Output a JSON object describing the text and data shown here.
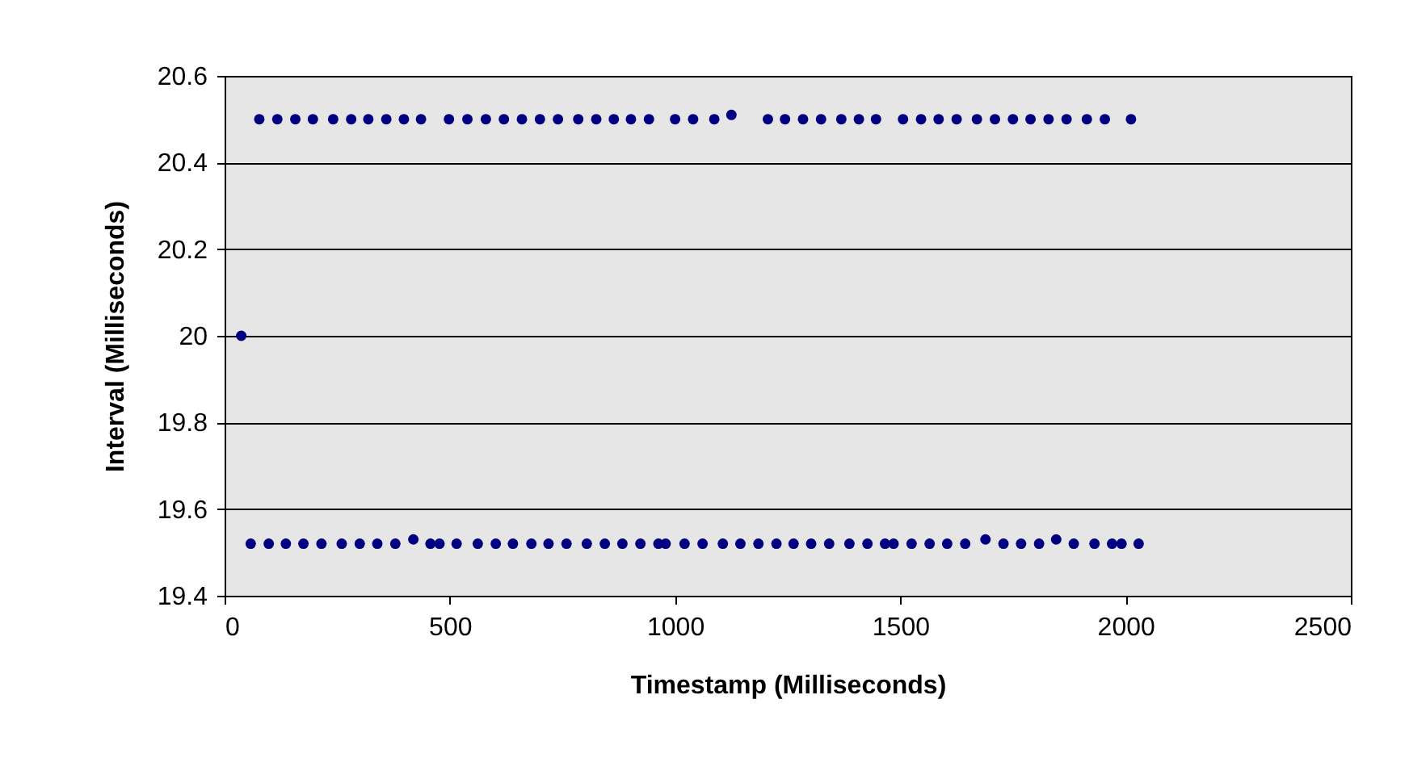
{
  "chart_data": {
    "type": "scatter",
    "xlabel": "Timestamp (Milliseconds)",
    "ylabel": "Interval (Milliseconds)",
    "xlim": [
      0,
      2500
    ],
    "xticks": [
      0,
      500,
      1000,
      1500,
      2000,
      2500
    ],
    "ylim": [
      19.4,
      20.6
    ],
    "yticks": [
      19.4,
      19.6,
      19.8,
      20,
      20.2,
      20.4,
      20.6
    ],
    "grid": "y",
    "marker": "circle",
    "series": [
      {
        "color": "#000080",
        "x": [
          37,
          77,
          117,
          157,
          196,
          241,
          281,
          319,
          359,
          398,
          436,
          498,
          539,
          580,
          620,
          660,
          700,
          740,
          785,
          825,
          864,
          902,
          942,
          1000,
          1040,
          1087,
          1125,
          1206,
          1244,
          1284,
          1324,
          1369,
          1408,
          1446,
          1506,
          1546,
          1585,
          1625,
          1670,
          1710,
          1750,
          1789,
          1829,
          1869,
          1914,
          1954,
          2012,
          58,
          98,
          136,
          175,
          215,
          260,
          300,
          339,
          379,
          419,
          457,
          477,
          515,
          562,
          602,
          640,
          681,
          719,
          759,
          804,
          844,
          883,
          923,
          963,
          979,
          1021,
          1061,
          1106,
          1145,
          1185,
          1225,
          1263,
          1302,
          1342,
          1387,
          1427,
          1466,
          1485,
          1525,
          1565,
          1604,
          1644,
          1689,
          1729,
          1768,
          1808,
          1846,
          1885,
          1931,
          1970,
          1991,
          2029
        ],
        "values": [
          20,
          20.5,
          20.5,
          20.5,
          20.5,
          20.5,
          20.5,
          20.5,
          20.5,
          20.5,
          20.5,
          20.5,
          20.5,
          20.5,
          20.5,
          20.5,
          20.5,
          20.5,
          20.5,
          20.5,
          20.5,
          20.5,
          20.5,
          20.5,
          20.5,
          20.5,
          20.51,
          20.5,
          20.5,
          20.5,
          20.5,
          20.5,
          20.5,
          20.5,
          20.5,
          20.5,
          20.5,
          20.5,
          20.5,
          20.5,
          20.5,
          20.5,
          20.5,
          20.5,
          20.5,
          20.5,
          20.5,
          19.52,
          19.52,
          19.52,
          19.52,
          19.52,
          19.52,
          19.52,
          19.52,
          19.52,
          19.53,
          19.52,
          19.52,
          19.52,
          19.52,
          19.52,
          19.52,
          19.52,
          19.52,
          19.52,
          19.52,
          19.52,
          19.52,
          19.52,
          19.52,
          19.52,
          19.52,
          19.52,
          19.52,
          19.52,
          19.52,
          19.52,
          19.52,
          19.52,
          19.52,
          19.52,
          19.52,
          19.52,
          19.52,
          19.52,
          19.52,
          19.52,
          19.52,
          19.53,
          19.52,
          19.52,
          19.52,
          19.53,
          19.52,
          19.52,
          19.52,
          19.52,
          19.52
        ]
      }
    ]
  }
}
